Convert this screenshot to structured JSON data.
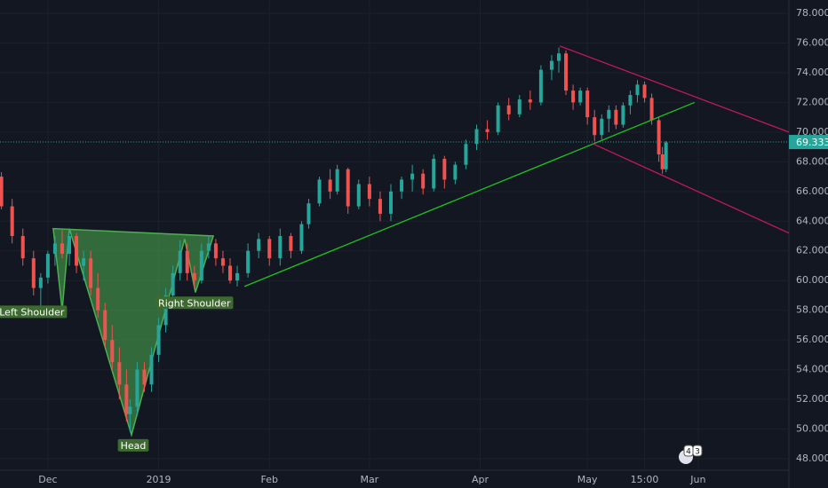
{
  "chart_data": {
    "type": "candlestick",
    "up_color": "#26a69a",
    "down_color": "#ef5350",
    "grid": true,
    "xlim": [
      -13.4,
      207.4
    ],
    "ylim": [
      47.22,
      78.9
    ],
    "xticks": [
      {
        "value": 0,
        "label": "Dec"
      },
      {
        "value": 31,
        "label": "2019"
      },
      {
        "value": 62,
        "label": "Feb"
      },
      {
        "value": 90,
        "label": "Mar"
      },
      {
        "value": 121,
        "label": "Apr"
      },
      {
        "value": 151,
        "label": "May"
      },
      {
        "value": 167,
        "label": "15:00"
      },
      {
        "value": 182,
        "label": "Jun"
      }
    ],
    "yticks": [
      {
        "value": 48,
        "label": "48.000"
      },
      {
        "value": 50,
        "label": "50.000"
      },
      {
        "value": 52,
        "label": "52.000"
      },
      {
        "value": 54,
        "label": "54.000"
      },
      {
        "value": 56,
        "label": "56.000"
      },
      {
        "value": 58,
        "label": "58.000"
      },
      {
        "value": 60,
        "label": "60.000"
      },
      {
        "value": 62,
        "label": "62.000"
      },
      {
        "value": 64,
        "label": "64.000"
      },
      {
        "value": 66,
        "label": "66.000"
      },
      {
        "value": 68,
        "label": "68.000"
      },
      {
        "value": 70,
        "label": "70.000"
      },
      {
        "value": 72,
        "label": "72.000"
      },
      {
        "value": 74,
        "label": "74.000"
      },
      {
        "value": 76,
        "label": "76.000"
      },
      {
        "value": 78,
        "label": "78.000"
      }
    ],
    "x": [
      -13,
      -10,
      -7,
      -4,
      -2,
      0,
      2,
      4,
      6,
      8,
      10,
      12,
      14,
      16,
      18,
      20,
      22,
      23,
      25,
      27,
      29,
      31,
      33,
      35,
      37,
      39,
      41,
      43,
      45,
      47,
      49,
      51,
      53,
      56,
      59,
      62,
      65,
      68,
      71,
      73,
      76,
      79,
      81,
      84,
      87,
      90,
      93,
      96,
      99,
      102,
      105,
      108,
      111,
      114,
      117,
      120,
      123,
      126,
      129,
      132,
      135,
      138,
      141,
      143,
      145,
      147,
      149,
      151,
      153,
      155,
      157,
      159,
      161,
      163,
      165,
      167,
      169,
      171,
      172,
      173
    ],
    "open": [
      67.0,
      65.0,
      63.0,
      61.5,
      59.5,
      60.2,
      61.8,
      62.5,
      61.8,
      63.0,
      61.0,
      61.5,
      59.5,
      58.0,
      56.0,
      54.5,
      53.0,
      51.0,
      51.5,
      54.0,
      53.0,
      55.0,
      57.0,
      59.0,
      60.5,
      62.0,
      60.5,
      60.0,
      62.0,
      62.5,
      61.5,
      61.0,
      60.0,
      60.5,
      62.0,
      62.8,
      61.5,
      63.0,
      62.0,
      63.8,
      65.2,
      66.8,
      66.0,
      67.5,
      65.0,
      66.5,
      65.5,
      64.5,
      66.0,
      66.8,
      67.2,
      66.2,
      68.2,
      66.8,
      67.8,
      69.2,
      70.2,
      70.0,
      71.8,
      71.2,
      72.2,
      72.0,
      74.2,
      74.8,
      75.3,
      72.8,
      72.0,
      72.8,
      71.0,
      69.8,
      70.9,
      71.5,
      70.5,
      71.8,
      72.5,
      73.2,
      72.3,
      70.8,
      68.5,
      67.5
    ],
    "high": [
      67.3,
      65.5,
      63.5,
      62.0,
      60.5,
      62.0,
      63.0,
      63.4,
      63.5,
      63.2,
      62.0,
      62.0,
      60.5,
      58.5,
      57.0,
      55.5,
      54.0,
      52.0,
      54.5,
      54.5,
      55.5,
      57.5,
      59.5,
      61.0,
      62.7,
      62.5,
      61.0,
      62.5,
      63.0,
      62.8,
      62.0,
      61.5,
      61.0,
      62.5,
      63.2,
      63.0,
      63.5,
      63.2,
      64.0,
      65.5,
      67.0,
      67.5,
      67.8,
      67.6,
      66.8,
      67.0,
      66.0,
      66.5,
      67.0,
      67.8,
      67.5,
      68.5,
      68.4,
      68.0,
      69.5,
      70.5,
      70.8,
      72.0,
      72.3,
      72.5,
      72.8,
      74.5,
      75.2,
      75.7,
      75.5,
      73.2,
      73.0,
      73.0,
      71.5,
      71.2,
      71.8,
      71.8,
      72.0,
      72.8,
      73.5,
      73.4,
      72.6,
      71.0,
      69.0,
      69.4
    ],
    "low": [
      64.8,
      62.5,
      61.0,
      59.0,
      58.3,
      59.8,
      61.0,
      61.5,
      61.0,
      60.5,
      60.0,
      59.0,
      57.5,
      55.5,
      54.0,
      52.0,
      50.5,
      49.8,
      51.0,
      52.5,
      52.5,
      54.5,
      56.5,
      58.5,
      60.0,
      60.0,
      59.5,
      59.8,
      61.5,
      61.0,
      60.5,
      59.8,
      59.6,
      60.2,
      61.5,
      61.0,
      61.0,
      61.5,
      61.8,
      63.5,
      65.0,
      65.5,
      65.8,
      64.5,
      64.8,
      65.0,
      64.0,
      64.0,
      65.5,
      66.0,
      65.8,
      66.0,
      66.2,
      66.5,
      67.5,
      68.8,
      69.5,
      69.8,
      70.8,
      71.0,
      71.5,
      71.8,
      73.5,
      74.0,
      72.5,
      71.5,
      71.8,
      70.5,
      69.4,
      69.5,
      70.0,
      70.2,
      70.3,
      71.2,
      72.0,
      72.0,
      70.5,
      68.0,
      67.2,
      67.3
    ],
    "close": [
      65.0,
      63.0,
      61.5,
      59.5,
      60.2,
      61.8,
      62.5,
      61.8,
      63.0,
      61.0,
      61.5,
      59.5,
      58.0,
      56.0,
      54.5,
      53.0,
      51.0,
      51.5,
      54.0,
      53.0,
      55.0,
      57.0,
      59.0,
      60.5,
      62.0,
      60.5,
      60.0,
      62.0,
      62.5,
      61.5,
      61.0,
      60.0,
      60.5,
      62.0,
      62.8,
      61.5,
      63.0,
      62.0,
      63.8,
      65.2,
      66.8,
      66.0,
      67.5,
      65.0,
      66.5,
      65.5,
      64.5,
      66.0,
      66.8,
      67.2,
      66.2,
      68.2,
      66.8,
      67.8,
      69.2,
      70.2,
      70.0,
      71.8,
      71.2,
      72.2,
      72.0,
      74.2,
      74.8,
      75.3,
      72.8,
      72.0,
      72.8,
      71.0,
      69.8,
      70.9,
      71.5,
      70.5,
      71.8,
      72.5,
      73.2,
      72.3,
      70.8,
      68.5,
      67.5,
      69.3
    ],
    "last_price": {
      "value": 69.333,
      "label": "69.333",
      "color": "#26a69a"
    },
    "pattern": {
      "color": "#4caf50",
      "x": [
        1.5,
        4,
        6,
        23.4,
        38.3,
        41.3,
        46.3
      ],
      "y": [
        63.5,
        58,
        63.5,
        49.6,
        62.8,
        59.2,
        63
      ]
    },
    "trendline": {
      "color": "#1fc11f",
      "x": [
        55,
        181
      ],
      "y": [
        59.6,
        72.0
      ]
    },
    "channel": {
      "color": "#c2185b",
      "upper": {
        "x": [
          143.3,
          207.4
        ],
        "y": [
          75.8,
          70.0
        ]
      },
      "lower": {
        "x": [
          152.7,
          207.4
        ],
        "y": [
          69.2,
          63.2
        ]
      }
    },
    "annotations": [
      {
        "text": "Left Shoulder",
        "x": -4.5,
        "y": 57.9
      },
      {
        "text": "Head",
        "x": 23.9,
        "y": 48.9
      },
      {
        "text": "Right Shoulder",
        "x": 41,
        "y": 58.5
      }
    ],
    "badge": [
      "4",
      "3"
    ]
  }
}
